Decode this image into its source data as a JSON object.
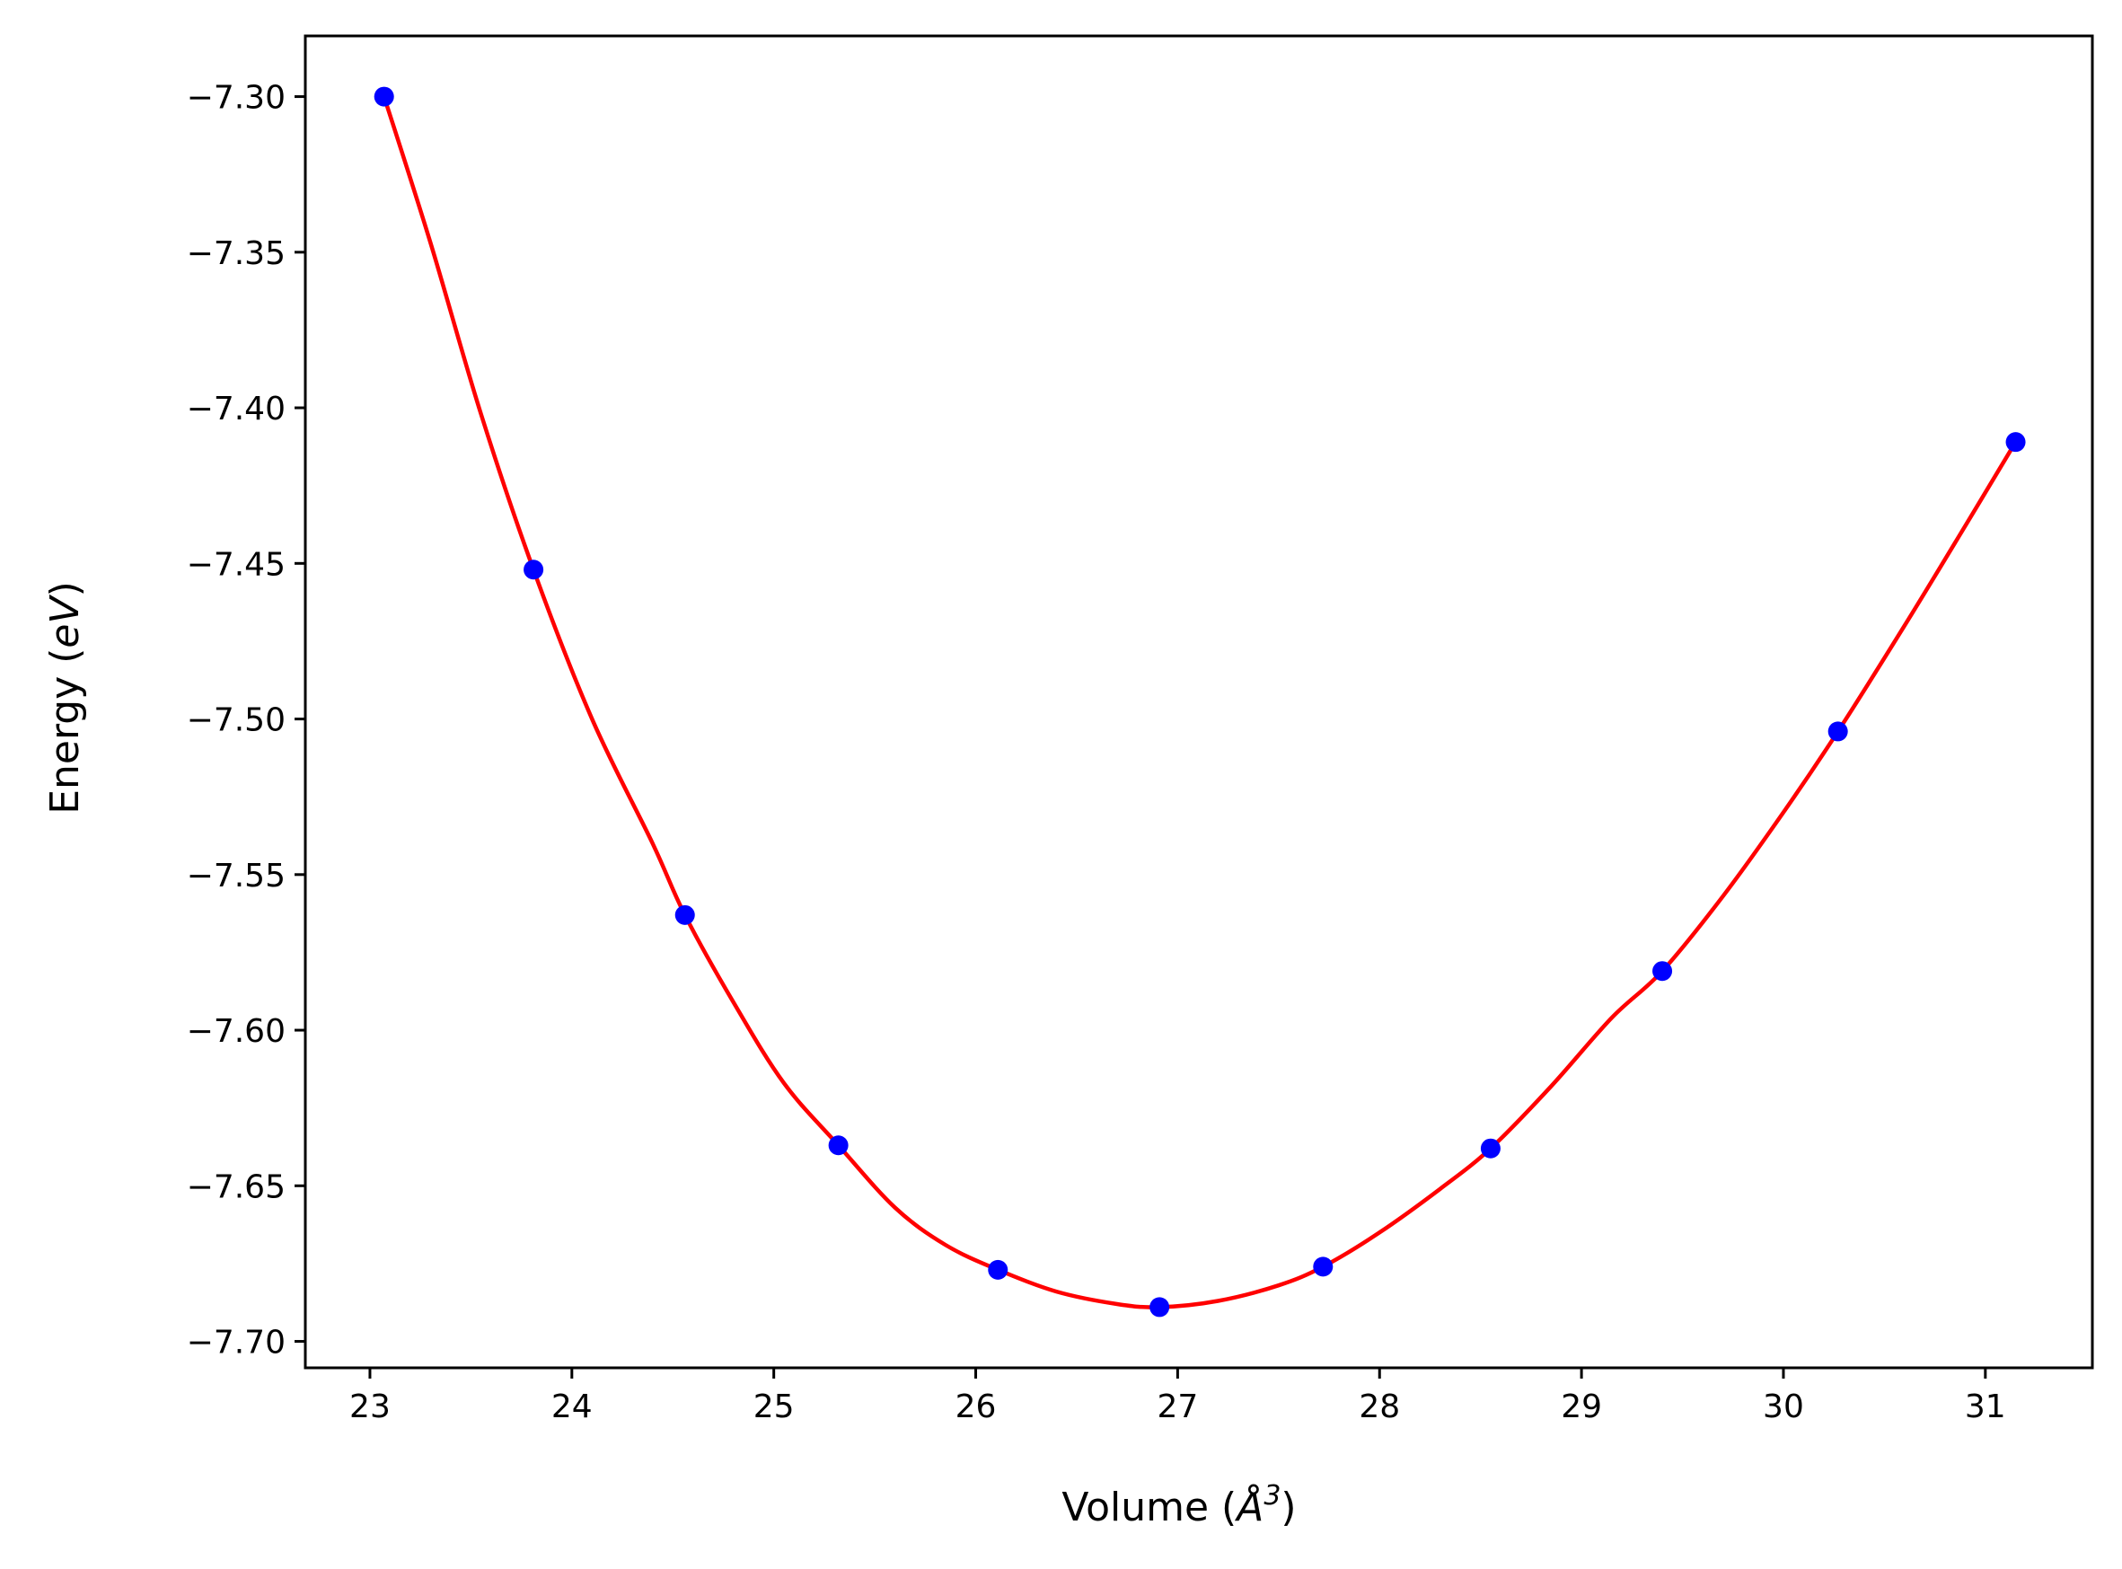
{
  "chart_data": {
    "type": "scatter",
    "title": "",
    "xlabel": {
      "prefix": "Volume (",
      "symbol": "Å",
      "superscript": "3",
      "suffix": ")"
    },
    "ylabel": {
      "prefix": "Energy (",
      "symbol": "eV",
      "suffix": ")"
    },
    "xlim": [
      22.68,
      31.53
    ],
    "ylim": [
      -7.7085,
      -7.2805
    ],
    "xticks": [
      23,
      24,
      25,
      26,
      27,
      28,
      29,
      30,
      31
    ],
    "xtick_labels": [
      "23",
      "24",
      "25",
      "26",
      "27",
      "28",
      "29",
      "30",
      "31"
    ],
    "yticks": [
      -7.3,
      -7.35,
      -7.4,
      -7.45,
      -7.5,
      -7.55,
      -7.6,
      -7.65,
      -7.7
    ],
    "ytick_labels": [
      "−7.30",
      "−7.35",
      "−7.40",
      "−7.45",
      "−7.50",
      "−7.55",
      "−7.60",
      "−7.65",
      "−7.70"
    ],
    "grid": false,
    "legend": "none",
    "series": [
      {
        "kind": "points",
        "color": "#0000ff",
        "x": [
          23.07,
          23.81,
          24.56,
          25.32,
          26.11,
          26.91,
          27.72,
          28.55,
          29.4,
          30.27,
          31.15
        ],
        "y": [
          -7.3,
          -7.452,
          -7.563,
          -7.637,
          -7.677,
          -7.689,
          -7.676,
          -7.638,
          -7.581,
          -7.504,
          -7.411
        ]
      },
      {
        "kind": "fit-curve",
        "color": "#ff0000",
        "x": [
          23.07,
          23.3,
          23.55,
          23.81,
          24.1,
          24.4,
          24.56,
          24.8,
          25.05,
          25.32,
          25.6,
          25.85,
          26.11,
          26.4,
          26.7,
          26.91,
          27.2,
          27.5,
          27.72,
          28.0,
          28.3,
          28.55,
          28.85,
          29.15,
          29.4,
          29.7,
          30.0,
          30.27,
          30.6,
          30.9,
          31.15
        ],
        "y": [
          -7.3,
          -7.347,
          -7.402,
          -7.452,
          -7.5,
          -7.54,
          -7.563,
          -7.591,
          -7.617,
          -7.637,
          -7.657,
          -7.669,
          -7.677,
          -7.684,
          -7.688,
          -7.689,
          -7.687,
          -7.682,
          -7.676,
          -7.665,
          -7.651,
          -7.638,
          -7.618,
          -7.596,
          -7.581,
          -7.557,
          -7.53,
          -7.504,
          -7.47,
          -7.438,
          -7.411
        ]
      }
    ]
  }
}
